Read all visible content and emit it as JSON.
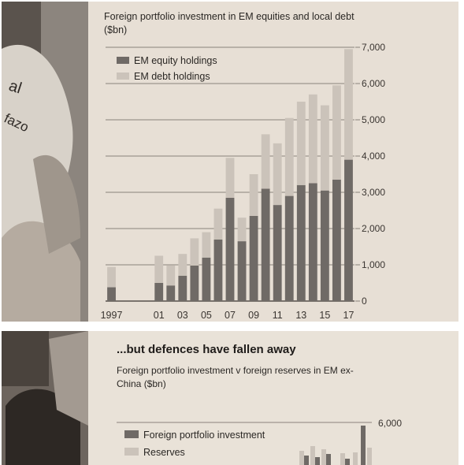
{
  "chart_data": [
    {
      "type": "bar",
      "stacked": true,
      "title": "Foreign portfolio investment in EM equities and local debt ($bn)",
      "categories": [
        "1997",
        "1998",
        "1999",
        "2000",
        "2001",
        "2002",
        "2003",
        "2004",
        "2005",
        "2006",
        "2007",
        "2008",
        "2009",
        "2010",
        "2011",
        "2012",
        "2013",
        "2014",
        "2015",
        "2016",
        "2017"
      ],
      "x_tick_labels": [
        "1997",
        "01",
        "03",
        "05",
        "07",
        "09",
        "11",
        "13",
        "15",
        "17"
      ],
      "series": [
        {
          "name": "EM equity holdings",
          "color": "#6f6a66",
          "values": [
            380,
            null,
            null,
            null,
            500,
            430,
            700,
            980,
            1200,
            1700,
            2850,
            1650,
            2350,
            3100,
            2650,
            2900,
            3200,
            3250,
            3050,
            3350,
            3900
          ]
        },
        {
          "name": "EM debt holdings",
          "color": "#cbc3ba",
          "values": [
            560,
            null,
            null,
            null,
            750,
            550,
            600,
            750,
            700,
            850,
            1100,
            650,
            1150,
            1500,
            1700,
            2150,
            2300,
            2450,
            2350,
            2600,
            3050
          ]
        }
      ],
      "ylim": [
        0,
        7000
      ],
      "y_ticks": [
        "0",
        "1,000",
        "2,000",
        "3,000",
        "4,000",
        "5,000",
        "6,000",
        "7,000"
      ],
      "grid": true,
      "legend": "top-left"
    },
    {
      "type": "bar",
      "title": "...but defences have fallen away",
      "subtitle": "Foreign portfolio investment v foreign reserves in EM ex-China ($bn)",
      "series": [
        {
          "name": "Foreign portfolio investment",
          "color": "#6f6a66"
        },
        {
          "name": "Reserves",
          "color": "#cbc3ba"
        }
      ],
      "y_ticks": [
        "6,000"
      ],
      "legend": "top-left"
    }
  ],
  "photo_text": {
    "line1": "al",
    "line2": "fazo"
  }
}
